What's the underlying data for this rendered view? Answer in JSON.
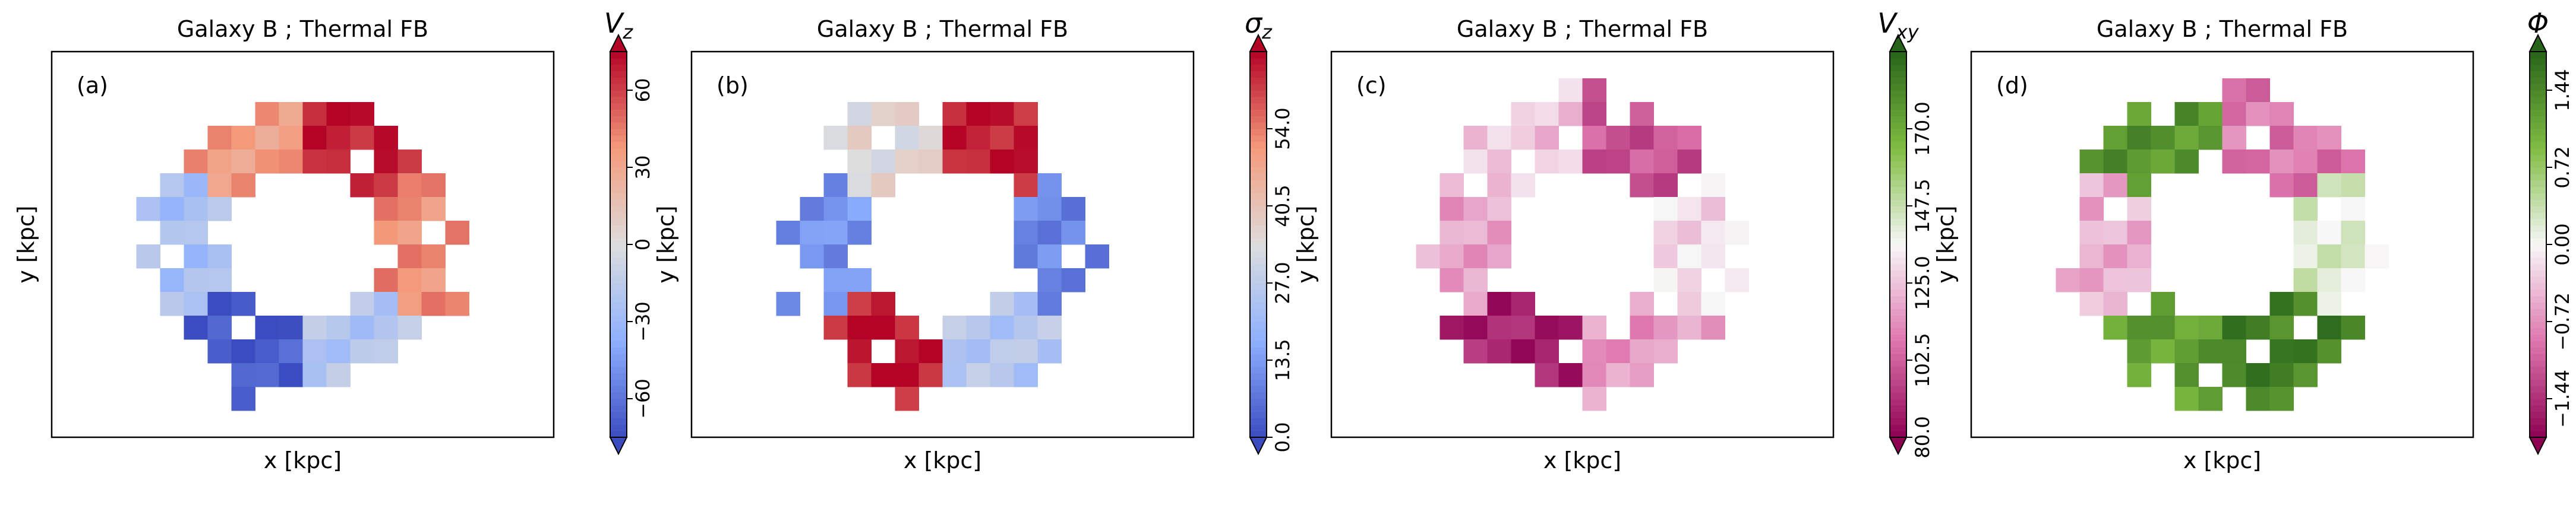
{
  "figure": {
    "panel_count": 4
  },
  "chart_data": [
    {
      "type": "heatmap",
      "panel_label": "(a)",
      "title": "Galaxy B ; Thermal FB",
      "xlabel": "x [kpc]",
      "ylabel": "y [kpc]",
      "colorbar": {
        "label_main": "V",
        "label_sub": "z",
        "colormap": "coolwarm",
        "range": [
          -75,
          75
        ],
        "ticks": [
          "−60",
          "−30",
          "0",
          "30",
          "60"
        ],
        "tick_values": [
          -60,
          -30,
          0,
          30,
          60
        ],
        "extend": "both",
        "colors": [
          "#3b4cc0",
          "#8db0fe",
          "#dddddd",
          "#f49a7b",
          "#b40426"
        ]
      },
      "map": {
        "shape": "ring",
        "grid": {
          "rows": 16,
          "cols": 16,
          "x_range": [
            0,
            1
          ],
          "y_range": [
            0,
            1
          ]
        },
        "value_range": [
          -75,
          75
        ],
        "regions": [
          {
            "name": "north-west",
            "value": 35
          },
          {
            "name": "north-east",
            "value": 70
          },
          {
            "name": "east",
            "value": 40
          },
          {
            "name": "south-east",
            "value": -20
          },
          {
            "name": "south",
            "value": -70
          },
          {
            "name": "west",
            "value": -25
          }
        ]
      }
    },
    {
      "type": "heatmap",
      "panel_label": "(b)",
      "title": "Galaxy B ; Thermal FB",
      "xlabel": "x [kpc]",
      "ylabel": "y [kpc]",
      "colorbar": {
        "label_main": "σ",
        "label_sub": "z",
        "colormap": "coolwarm",
        "range": [
          0,
          67.5
        ],
        "ticks": [
          "0.0",
          "13.5",
          "27.0",
          "40.5",
          "54.0"
        ],
        "tick_values": [
          0,
          13.5,
          27,
          40.5,
          54
        ],
        "extend": "both",
        "colors": [
          "#3b4cc0",
          "#8db0fe",
          "#dddddd",
          "#f49a7b",
          "#b40426"
        ]
      },
      "map": {
        "shape": "ring",
        "grid": {
          "rows": 16,
          "cols": 16,
          "x_range": [
            0,
            1
          ],
          "y_range": [
            0,
            1
          ]
        },
        "value_range": [
          0,
          67.5
        ],
        "regions": [
          {
            "name": "north-west",
            "value": 35
          },
          {
            "name": "north-east",
            "value": 65
          },
          {
            "name": "east",
            "value": 10
          },
          {
            "name": "south-east",
            "value": 25
          },
          {
            "name": "south",
            "value": 65
          },
          {
            "name": "west",
            "value": 12
          }
        ]
      }
    },
    {
      "type": "heatmap",
      "panel_label": "(c)",
      "title": "Galaxy B ; Thermal FB",
      "xlabel": "x [kpc]",
      "ylabel": "y [kpc]",
      "colorbar": {
        "label_main": "V",
        "label_sub": "xy",
        "colormap": "PiYG",
        "range": [
          80,
          192.5
        ],
        "ticks": [
          "80.0",
          "102.5",
          "125.0",
          "147.5",
          "170.0"
        ],
        "tick_values": [
          80,
          102.5,
          125,
          147.5,
          170
        ],
        "extend": "both",
        "colors": [
          "#8e0152",
          "#de77ae",
          "#f7f7f7",
          "#7fbc41",
          "#276419"
        ]
      },
      "map": {
        "shape": "ring",
        "grid": {
          "rows": 16,
          "cols": 16,
          "x_range": [
            0,
            1
          ],
          "y_range": [
            0,
            1
          ]
        },
        "value_range": [
          80,
          192.5
        ],
        "regions": [
          {
            "name": "north-west",
            "value": 125
          },
          {
            "name": "north-east",
            "value": 100
          },
          {
            "name": "east",
            "value": 130
          },
          {
            "name": "south-east",
            "value": 115
          },
          {
            "name": "south",
            "value": 88
          },
          {
            "name": "west",
            "value": 118
          }
        ]
      }
    },
    {
      "type": "heatmap",
      "panel_label": "(d)",
      "title": "Galaxy B ; Thermal FB",
      "xlabel": "x [kpc]",
      "ylabel": "y [kpc]",
      "colorbar": {
        "label_main": "Φ",
        "label_sub": "",
        "colormap": "PiYG",
        "range": [
          -1.8,
          1.8
        ],
        "ticks": [
          "−1.44",
          "−0.72",
          "0.00",
          "0.72",
          "1.44"
        ],
        "tick_values": [
          -1.44,
          -0.72,
          0,
          0.72,
          1.44
        ],
        "extend": "both",
        "colors": [
          "#8e0152",
          "#de77ae",
          "#f7f7f7",
          "#7fbc41",
          "#276419"
        ]
      },
      "map": {
        "shape": "ring",
        "grid": {
          "rows": 16,
          "cols": 16,
          "x_range": [
            0,
            1
          ],
          "y_range": [
            0,
            1
          ]
        },
        "value_range": [
          -1.8,
          1.8
        ],
        "regions": [
          {
            "name": "north-west",
            "value": 1.3
          },
          {
            "name": "north-east",
            "value": -0.9
          },
          {
            "name": "east",
            "value": 0.2
          },
          {
            "name": "south-east",
            "value": 1.5
          },
          {
            "name": "south",
            "value": 1.2
          },
          {
            "name": "west",
            "value": -0.5
          }
        ]
      }
    }
  ]
}
